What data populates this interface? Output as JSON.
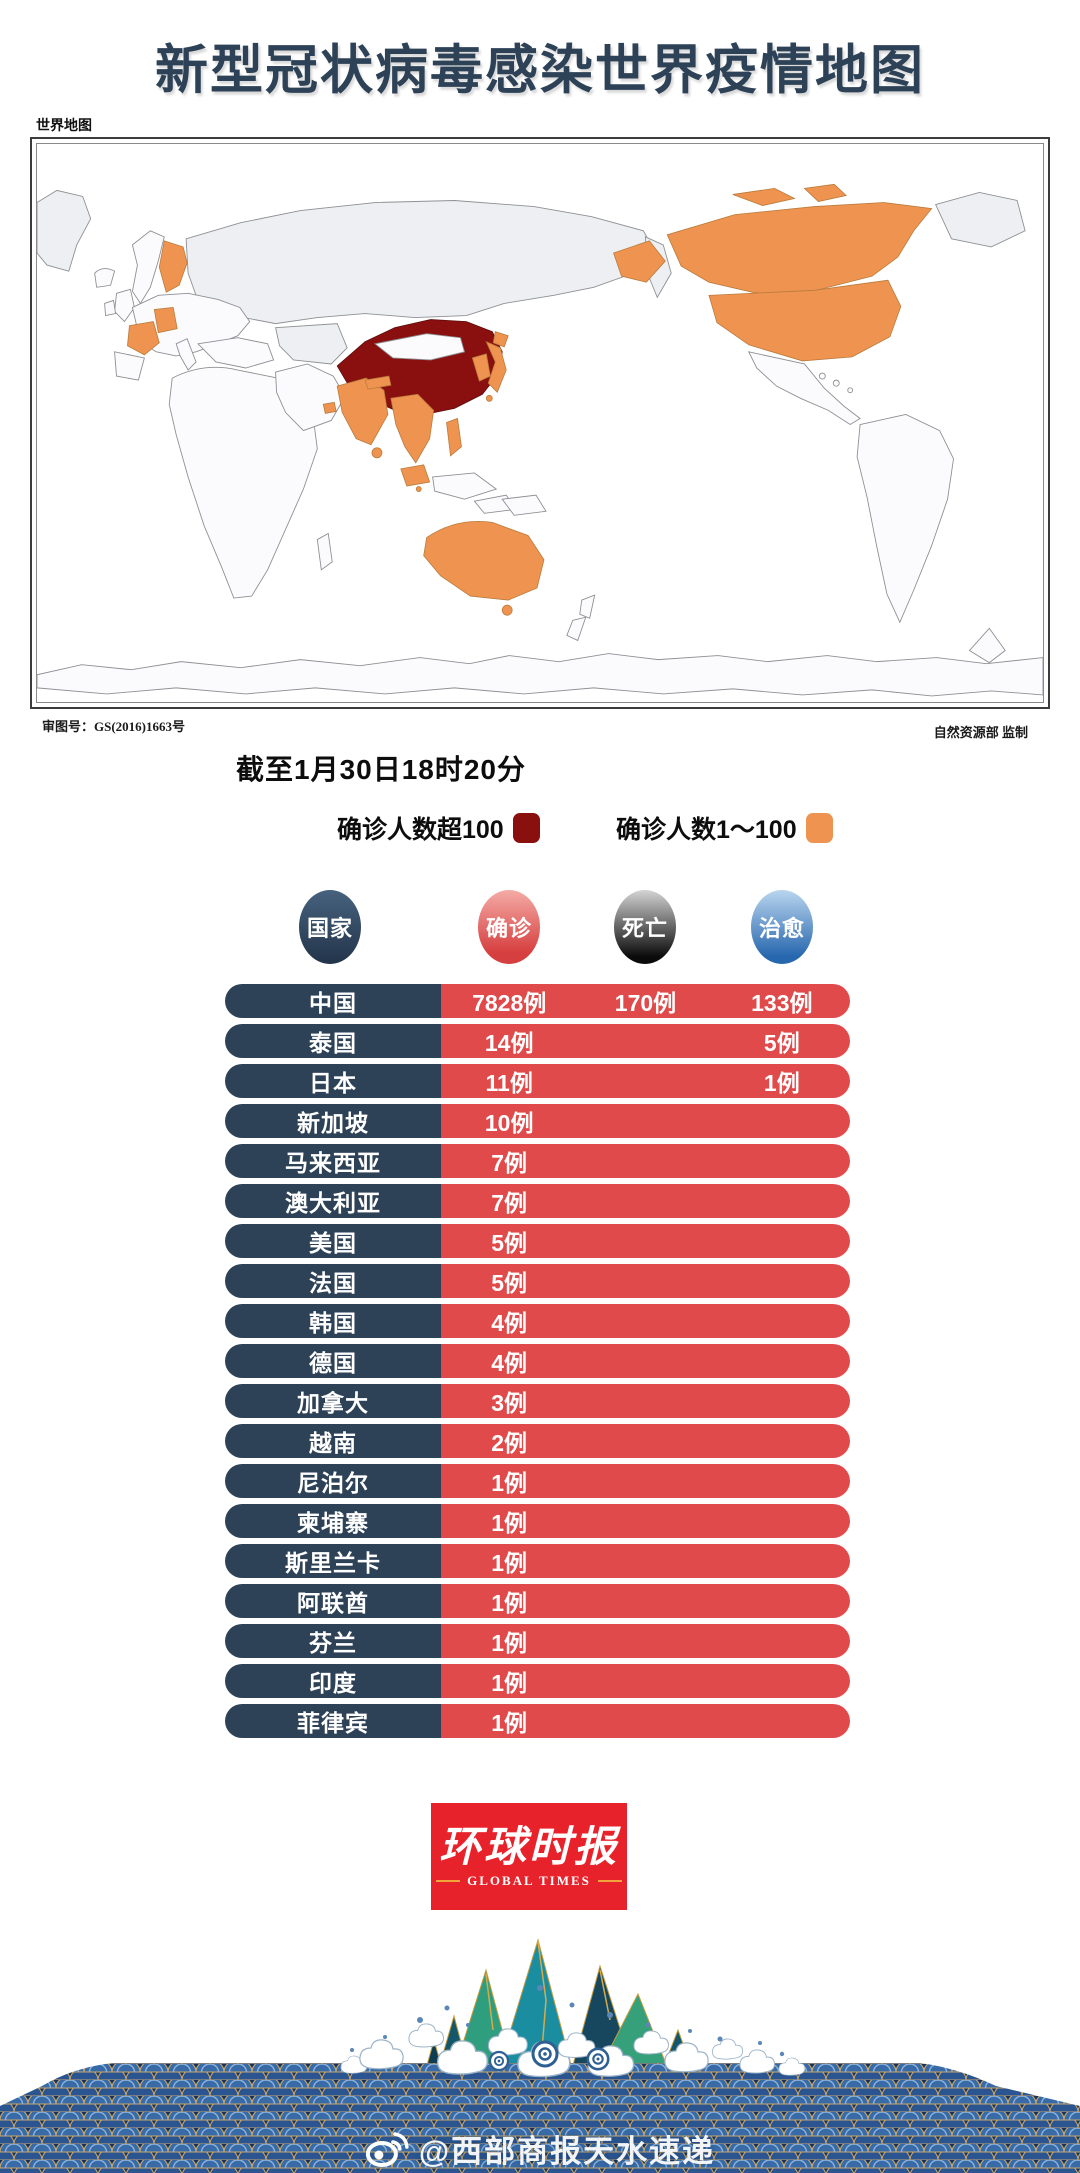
{
  "colors": {
    "title_navy": "#2e4257",
    "row_navy": "#2e4257",
    "row_red": "#e14a4a",
    "severe_red": "#8a1010",
    "mild_orange": "#ef9350",
    "logo_red": "#e8222b",
    "deaths_black": "#0b0b0b",
    "cured_blue": "#2767ae"
  },
  "title": {
    "text": "新型冠状病毒感染世界疫情地图"
  },
  "map": {
    "corner_label": "世界地图",
    "license": "审图号：GS(2016)1663号",
    "credit": "自然资源部 监制",
    "highlights": {
      "severe": [
        "中国"
      ],
      "mild": [
        "芬兰",
        "德国",
        "法国",
        "阿联酋",
        "印度",
        "尼泊尔",
        "斯里兰卡",
        "泰国",
        "越南",
        "柬埔寨",
        "马来西亚",
        "新加坡",
        "菲律宾",
        "韩国",
        "日本",
        "澳大利亚",
        "美国",
        "加拿大"
      ]
    }
  },
  "timestamp": "截至1月30日18时20分",
  "legend": [
    {
      "label": "确诊人数超100",
      "color": "#8a1010"
    },
    {
      "label": "确诊人数1～100",
      "color": "#ef9350"
    }
  ],
  "table": {
    "headers": [
      {
        "key": "country",
        "label": "国家"
      },
      {
        "key": "confirmed",
        "label": "确诊"
      },
      {
        "key": "deaths",
        "label": "死亡"
      },
      {
        "key": "cured",
        "label": "治愈"
      }
    ],
    "rows": [
      {
        "country": "中国",
        "confirmed": "7828例",
        "deaths": "170例",
        "cured": "133例"
      },
      {
        "country": "泰国",
        "confirmed": "14例",
        "deaths": "",
        "cured": "5例"
      },
      {
        "country": "日本",
        "confirmed": "11例",
        "deaths": "",
        "cured": "1例"
      },
      {
        "country": "新加坡",
        "confirmed": "10例",
        "deaths": "",
        "cured": ""
      },
      {
        "country": "马来西亚",
        "confirmed": "7例",
        "deaths": "",
        "cured": ""
      },
      {
        "country": "澳大利亚",
        "confirmed": "7例",
        "deaths": "",
        "cured": ""
      },
      {
        "country": "美国",
        "confirmed": "5例",
        "deaths": "",
        "cured": ""
      },
      {
        "country": "法国",
        "confirmed": "5例",
        "deaths": "",
        "cured": ""
      },
      {
        "country": "韩国",
        "confirmed": "4例",
        "deaths": "",
        "cured": ""
      },
      {
        "country": "德国",
        "confirmed": "4例",
        "deaths": "",
        "cured": ""
      },
      {
        "country": "加拿大",
        "confirmed": "3例",
        "deaths": "",
        "cured": ""
      },
      {
        "country": "越南",
        "confirmed": "2例",
        "deaths": "",
        "cured": ""
      },
      {
        "country": "尼泊尔",
        "confirmed": "1例",
        "deaths": "",
        "cured": ""
      },
      {
        "country": "柬埔寨",
        "confirmed": "1例",
        "deaths": "",
        "cured": ""
      },
      {
        "country": "斯里兰卡",
        "confirmed": "1例",
        "deaths": "",
        "cured": ""
      },
      {
        "country": "阿联酋",
        "confirmed": "1例",
        "deaths": "",
        "cured": ""
      },
      {
        "country": "芬兰",
        "confirmed": "1例",
        "deaths": "",
        "cured": ""
      },
      {
        "country": "印度",
        "confirmed": "1例",
        "deaths": "",
        "cured": ""
      },
      {
        "country": "菲律宾",
        "confirmed": "1例",
        "deaths": "",
        "cured": ""
      }
    ]
  },
  "logo": {
    "cn": "环球时报",
    "en": "GLOBAL TIMES"
  },
  "watermark": {
    "text": "@西部商报天水速递"
  },
  "chart_data": {
    "type": "table",
    "title": "新型冠状病毒感染世界疫情地图",
    "as_of": "截至1月30日18时20分",
    "columns": [
      "国家",
      "确诊",
      "死亡",
      "治愈"
    ],
    "unit": "例",
    "rows": [
      [
        "中国",
        7828,
        170,
        133
      ],
      [
        "泰国",
        14,
        null,
        5
      ],
      [
        "日本",
        11,
        null,
        1
      ],
      [
        "新加坡",
        10,
        null,
        null
      ],
      [
        "马来西亚",
        7,
        null,
        null
      ],
      [
        "澳大利亚",
        7,
        null,
        null
      ],
      [
        "美国",
        5,
        null,
        null
      ],
      [
        "法国",
        5,
        null,
        null
      ],
      [
        "韩国",
        4,
        null,
        null
      ],
      [
        "德国",
        4,
        null,
        null
      ],
      [
        "加拿大",
        3,
        null,
        null
      ],
      [
        "越南",
        2,
        null,
        null
      ],
      [
        "尼泊尔",
        1,
        null,
        null
      ],
      [
        "柬埔寨",
        1,
        null,
        null
      ],
      [
        "斯里兰卡",
        1,
        null,
        null
      ],
      [
        "阿联酋",
        1,
        null,
        null
      ],
      [
        "芬兰",
        1,
        null,
        null
      ],
      [
        "印度",
        1,
        null,
        null
      ],
      [
        "菲律宾",
        1,
        null,
        null
      ]
    ],
    "choropleth_legend": [
      {
        "label": "确诊人数超100",
        "color": "#8a1010"
      },
      {
        "label": "确诊人数1～100",
        "color": "#ef9350"
      }
    ]
  }
}
